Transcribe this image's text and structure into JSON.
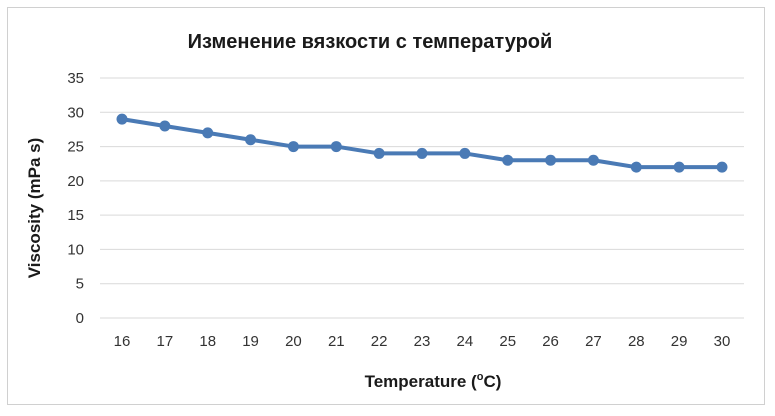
{
  "chart_data": {
    "type": "line",
    "title": "Изменение вязкости с температурой",
    "xlabel_text": "Temperature (",
    "xlabel_sup": "o",
    "xlabel_end": "C)",
    "ylabel": "Viscosity (mPa s)",
    "ylim": [
      0,
      35
    ],
    "yticks": [
      0,
      5,
      10,
      15,
      20,
      25,
      30,
      35
    ],
    "x": [
      16,
      17,
      18,
      19,
      20,
      21,
      22,
      23,
      24,
      25,
      26,
      27,
      28,
      29,
      30
    ],
    "series": [
      {
        "values": [
          29,
          28,
          27,
          26,
          25,
          25,
          24,
          24,
          24,
          23,
          23,
          23,
          22,
          22,
          22
        ]
      }
    ],
    "grid": true,
    "legend": "none",
    "line_color": "#4a7ab5"
  }
}
